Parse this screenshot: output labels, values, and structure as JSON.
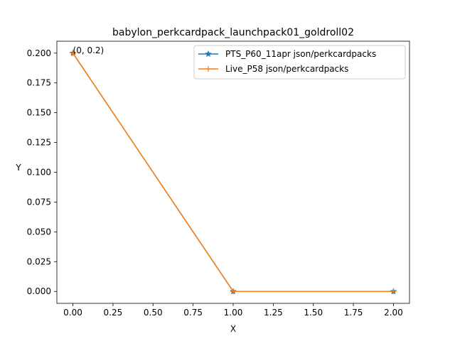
{
  "chart_data": {
    "type": "line",
    "title": "babylon_perkcardpack_launchpack01_goldroll02",
    "xlabel": "X",
    "ylabel": "Y",
    "xlim": [
      -0.1,
      2.1
    ],
    "ylim": [
      -0.01,
      0.21
    ],
    "xticks": [
      0.0,
      0.25,
      0.5,
      0.75,
      1.0,
      1.25,
      1.5,
      1.75,
      2.0
    ],
    "xtick_labels": [
      "0.00",
      "0.25",
      "0.50",
      "0.75",
      "1.00",
      "1.25",
      "1.50",
      "1.75",
      "2.00"
    ],
    "yticks": [
      0.0,
      0.025,
      0.05,
      0.075,
      0.1,
      0.125,
      0.15,
      0.175,
      0.2
    ],
    "ytick_labels": [
      "0.000",
      "0.025",
      "0.050",
      "0.075",
      "0.100",
      "0.125",
      "0.150",
      "0.175",
      "0.200"
    ],
    "grid": false,
    "legend_position": "top-right",
    "series": [
      {
        "name": "PTS_P60_11apr json/perkcardpacks",
        "x": [
          0,
          1,
          2
        ],
        "y": [
          0.2,
          0.0,
          0.0
        ],
        "color": "#1f77b4",
        "marker": "star"
      },
      {
        "name": "Live_P58 json/perkcardpacks",
        "x": [
          0,
          1,
          2
        ],
        "y": [
          0.2,
          0.0,
          0.0
        ],
        "color": "#ff7f0e",
        "marker": "plus"
      }
    ],
    "annotations": [
      {
        "text": "(0, 0.2)",
        "x": 0,
        "y": 0.2
      }
    ]
  }
}
